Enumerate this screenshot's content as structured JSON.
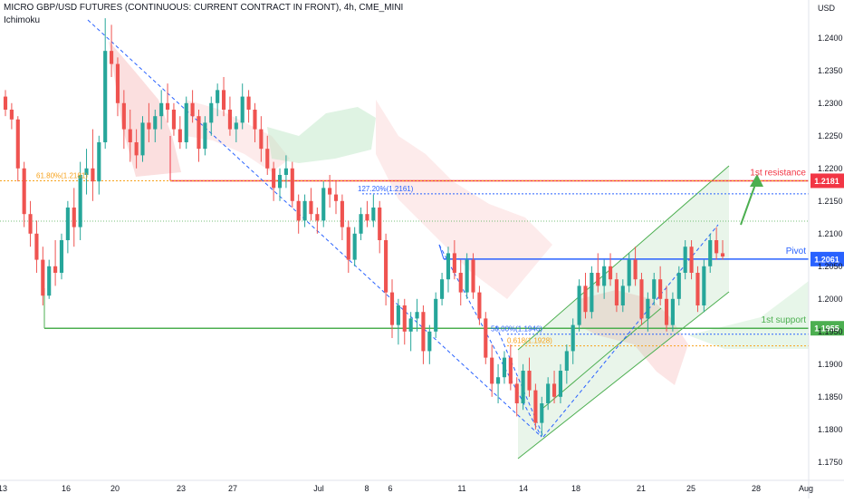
{
  "header": {
    "title": "MICRO GBP/USD FUTURES (CONTINUOUS: CURRENT CONTRACT IN FRONT), 4h, CME_MINI",
    "indicator": "Ichimoku"
  },
  "colors": {
    "bull": "#26a69a",
    "bear": "#ef5350",
    "resistance": "#f23645",
    "support": "#4caf50",
    "pivot": "#2962ff",
    "fib_blue": "#2962ff",
    "fib_orange": "#f7a21b",
    "channel": "#4caf50",
    "cloud_green": "#b9e4c1",
    "cloud_red": "#f8c5c5",
    "trend_dashed": "#2962ff"
  },
  "chart_data": {
    "type": "candlestick",
    "title": "MICRO GBP/USD FUTURES (CONTINUOUS: CURRENT CONTRACT IN FRONT), 4h, CME_MINI",
    "price_axis_label": "USD",
    "ylim": [
      1.1722,
      1.2458
    ],
    "y_ticks": [
      "1.2400",
      "1.2350",
      "1.2300",
      "1.2250",
      "1.2200",
      "1.2150",
      "1.2100",
      "1.2050",
      "1.2000",
      "1.1950",
      "1.1900",
      "1.1850",
      "1.1800",
      "1.1750"
    ],
    "x_ticks": [
      "13",
      "16",
      "20",
      "23",
      "27",
      "Jul",
      "6",
      "8",
      "11",
      "14",
      "18",
      "21",
      "25",
      "28",
      "Aug"
    ],
    "levels": [
      {
        "label": "1st resistance",
        "value": 1.2181,
        "value_label": "1.2181"
      },
      {
        "label": "Pivot",
        "value": 1.2061,
        "value_label": "1.2061"
      },
      {
        "label": "1st support",
        "value": 1.1955,
        "value_label": "1.1955"
      }
    ],
    "fib_labels": [
      {
        "text": "61.80%(1.2181)",
        "value": 1.2181
      },
      {
        "text": "127.20%(1.2161)",
        "value": 1.2161
      },
      {
        "text": "50.00%(1.1946)",
        "value": 1.1946
      },
      {
        "text": "0.618(1.1928)",
        "value": 1.1928
      }
    ],
    "candles": [
      [
        1.231,
        1.232,
        1.228,
        1.229
      ],
      [
        1.229,
        1.23,
        1.226,
        1.2275
      ],
      [
        1.2275,
        1.228,
        1.218,
        1.22
      ],
      [
        1.22,
        1.221,
        1.211,
        1.213
      ],
      [
        1.213,
        1.215,
        1.208,
        1.21
      ],
      [
        1.21,
        1.212,
        1.204,
        1.206
      ],
      [
        1.206,
        1.208,
        1.199,
        1.2005
      ],
      [
        1.2005,
        1.206,
        1.2,
        1.205
      ],
      [
        1.205,
        1.209,
        1.202,
        1.204
      ],
      [
        1.204,
        1.21,
        1.203,
        1.209
      ],
      [
        1.209,
        1.215,
        1.207,
        1.214
      ],
      [
        1.214,
        1.217,
        1.208,
        1.211
      ],
      [
        1.211,
        1.221,
        1.209,
        1.219
      ],
      [
        1.219,
        1.223,
        1.216,
        1.22
      ],
      [
        1.22,
        1.226,
        1.215,
        1.218
      ],
      [
        1.218,
        1.225,
        1.216,
        1.224
      ],
      [
        1.224,
        1.243,
        1.223,
        1.238
      ],
      [
        1.238,
        1.242,
        1.234,
        1.236
      ],
      [
        1.236,
        1.237,
        1.228,
        1.23
      ],
      [
        1.23,
        1.232,
        1.223,
        1.226
      ],
      [
        1.226,
        1.229,
        1.221,
        1.224
      ],
      [
        1.224,
        1.226,
        1.22,
        1.222
      ],
      [
        1.222,
        1.228,
        1.221,
        1.227
      ],
      [
        1.227,
        1.23,
        1.224,
        1.226
      ],
      [
        1.226,
        1.229,
        1.224,
        1.228
      ],
      [
        1.228,
        1.232,
        1.226,
        1.23
      ],
      [
        1.23,
        1.233,
        1.227,
        1.229
      ],
      [
        1.229,
        1.23,
        1.225,
        1.226
      ],
      [
        1.226,
        1.228,
        1.223,
        1.224
      ],
      [
        1.224,
        1.231,
        1.223,
        1.23
      ],
      [
        1.23,
        1.232,
        1.227,
        1.228
      ],
      [
        1.228,
        1.229,
        1.221,
        1.223
      ],
      [
        1.223,
        1.228,
        1.222,
        1.227
      ],
      [
        1.227,
        1.231,
        1.225,
        1.23
      ],
      [
        1.23,
        1.233,
        1.228,
        1.232
      ],
      [
        1.232,
        1.234,
        1.228,
        1.229
      ],
      [
        1.229,
        1.231,
        1.225,
        1.226
      ],
      [
        1.226,
        1.228,
        1.224,
        1.227
      ],
      [
        1.227,
        1.233,
        1.226,
        1.231
      ],
      [
        1.231,
        1.232,
        1.227,
        1.229
      ],
      [
        1.229,
        1.23,
        1.224,
        1.226
      ],
      [
        1.226,
        1.228,
        1.221,
        1.223
      ],
      [
        1.223,
        1.225,
        1.219,
        1.22
      ],
      [
        1.22,
        1.221,
        1.215,
        1.217
      ],
      [
        1.217,
        1.22,
        1.215,
        1.219
      ],
      [
        1.219,
        1.222,
        1.217,
        1.22
      ],
      [
        1.22,
        1.221,
        1.214,
        1.215
      ],
      [
        1.215,
        1.216,
        1.21,
        1.212
      ],
      [
        1.212,
        1.216,
        1.211,
        1.215
      ],
      [
        1.215,
        1.217,
        1.212,
        1.213
      ],
      [
        1.213,
        1.214,
        1.21,
        1.212
      ],
      [
        1.212,
        1.218,
        1.211,
        1.217
      ],
      [
        1.217,
        1.219,
        1.214,
        1.216
      ],
      [
        1.216,
        1.218,
        1.213,
        1.215
      ],
      [
        1.215,
        1.216,
        1.209,
        1.211
      ],
      [
        1.211,
        1.212,
        1.204,
        1.206
      ],
      [
        1.206,
        1.211,
        1.205,
        1.21
      ],
      [
        1.21,
        1.214,
        1.209,
        1.213
      ],
      [
        1.213,
        1.215,
        1.211,
        1.212
      ],
      [
        1.212,
        1.216,
        1.211,
        1.214
      ],
      [
        1.214,
        1.215,
        1.207,
        1.209
      ],
      [
        1.209,
        1.21,
        1.199,
        1.201
      ],
      [
        1.201,
        1.203,
        1.194,
        1.196
      ],
      [
        1.196,
        1.2,
        1.193,
        1.199
      ],
      [
        1.199,
        1.2,
        1.193,
        1.195
      ],
      [
        1.195,
        1.198,
        1.192,
        1.197
      ],
      [
        1.197,
        1.2,
        1.195,
        1.198
      ],
      [
        1.198,
        1.199,
        1.19,
        1.192
      ],
      [
        1.192,
        1.196,
        1.19,
        1.195
      ],
      [
        1.195,
        1.201,
        1.194,
        1.2
      ],
      [
        1.2,
        1.204,
        1.199,
        1.203
      ],
      [
        1.203,
        1.208,
        1.201,
        1.207
      ],
      [
        1.207,
        1.209,
        1.203,
        1.204
      ],
      [
        1.204,
        1.206,
        1.199,
        1.201
      ],
      [
        1.201,
        1.207,
        1.2,
        1.206
      ],
      [
        1.206,
        1.207,
        1.2,
        1.201
      ],
      [
        1.201,
        1.202,
        1.196,
        1.197
      ],
      [
        1.197,
        1.198,
        1.19,
        1.191
      ],
      [
        1.191,
        1.193,
        1.185,
        1.187
      ],
      [
        1.187,
        1.19,
        1.184,
        1.188
      ],
      [
        1.188,
        1.192,
        1.187,
        1.191
      ],
      [
        1.191,
        1.193,
        1.186,
        1.187
      ],
      [
        1.187,
        1.188,
        1.182,
        1.184
      ],
      [
        1.184,
        1.19,
        1.183,
        1.189
      ],
      [
        1.189,
        1.191,
        1.185,
        1.186
      ],
      [
        1.186,
        1.187,
        1.18,
        1.181
      ],
      [
        1.181,
        1.185,
        1.179,
        1.184
      ],
      [
        1.184,
        1.188,
        1.183,
        1.187
      ],
      [
        1.187,
        1.189,
        1.184,
        1.185
      ],
      [
        1.185,
        1.19,
        1.184,
        1.189
      ],
      [
        1.189,
        1.193,
        1.187,
        1.192
      ],
      [
        1.192,
        1.197,
        1.19,
        1.196
      ],
      [
        1.196,
        1.203,
        1.195,
        1.202
      ],
      [
        1.202,
        1.204,
        1.197,
        1.198
      ],
      [
        1.198,
        1.205,
        1.197,
        1.204
      ],
      [
        1.204,
        1.207,
        1.201,
        1.202
      ],
      [
        1.202,
        1.206,
        1.2,
        1.205
      ],
      [
        1.205,
        1.207,
        1.202,
        1.203
      ],
      [
        1.203,
        1.204,
        1.198,
        1.199
      ],
      [
        1.199,
        1.203,
        1.198,
        1.202
      ],
      [
        1.202,
        1.207,
        1.201,
        1.206
      ],
      [
        1.206,
        1.208,
        1.202,
        1.203
      ],
      [
        1.203,
        1.204,
        1.196,
        1.197
      ],
      [
        1.197,
        1.201,
        1.195,
        1.2
      ],
      [
        1.2,
        1.204,
        1.199,
        1.203
      ],
      [
        1.203,
        1.205,
        1.199,
        1.2
      ],
      [
        1.2,
        1.202,
        1.195,
        1.196
      ],
      [
        1.196,
        1.201,
        1.195,
        1.2
      ],
      [
        1.2,
        1.205,
        1.199,
        1.204
      ],
      [
        1.204,
        1.209,
        1.203,
        1.208
      ],
      [
        1.208,
        1.209,
        1.203,
        1.204
      ],
      [
        1.204,
        1.205,
        1.198,
        1.199
      ],
      [
        1.199,
        1.206,
        1.198,
        1.205
      ],
      [
        1.205,
        1.21,
        1.204,
        1.209
      ],
      [
        1.209,
        1.211,
        1.206,
        1.207
      ],
      [
        1.207,
        1.209,
        1.206,
        1.2065
      ]
    ]
  }
}
